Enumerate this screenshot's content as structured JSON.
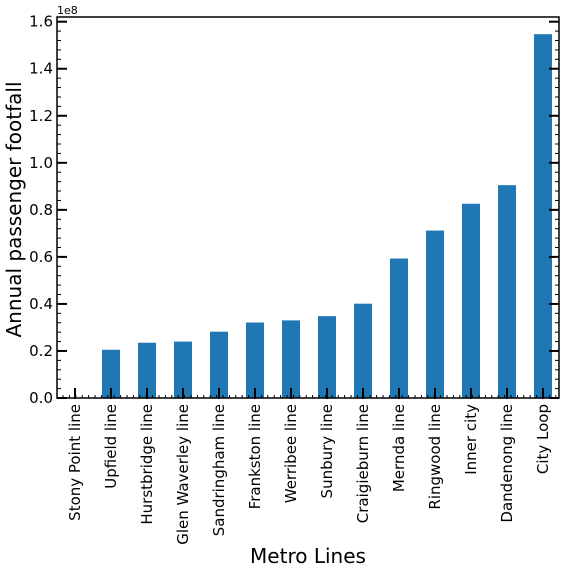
{
  "chart_data": {
    "type": "bar",
    "title": "",
    "xlabel": "Metro Lines",
    "ylabel": "Annual passenger footfall",
    "offset_text": "1e8",
    "scale": 100000000,
    "ylim": [
      0,
      1.62
    ],
    "yticks": [
      0.0,
      0.2,
      0.4,
      0.6,
      0.8,
      1.0,
      1.2,
      1.4,
      1.6
    ],
    "ytick_labels": [
      "0.0",
      "0.2",
      "0.4",
      "0.6",
      "0.8",
      "1.0",
      "1.2",
      "1.4",
      "1.6"
    ],
    "categories": [
      "Stony Point line",
      "Upfield line",
      "Hurstbridge line",
      "Glen Waverley line",
      "Sandringham line",
      "Frankston line",
      "Werribee line",
      "Sunbury line",
      "Craigieburn line",
      "Mernda line",
      "Ringwood line",
      "Inner city",
      "Dandenong line",
      "City Loop"
    ],
    "values": [
      0.001,
      0.205,
      0.235,
      0.24,
      0.282,
      0.321,
      0.33,
      0.348,
      0.401,
      0.593,
      0.712,
      0.826,
      0.905,
      1.547
    ],
    "bar_color": "#1f77b4",
    "grid": false,
    "legend": "none"
  }
}
